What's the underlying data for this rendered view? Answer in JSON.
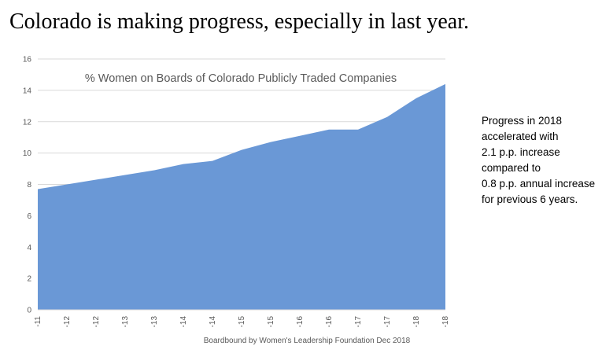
{
  "slide": {
    "title": "Colorado is making progress, especially in last year."
  },
  "callout": {
    "lines": [
      "Progress in 2018",
      "accelerated with",
      "2.1 p.p. increase",
      "compared to",
      "0.8 p.p. annual increase",
      "for previous 6 years."
    ]
  },
  "colors": {
    "area_fill": "#6a98d6",
    "grid": "#d9d9d9",
    "axis_text": "#595959"
  },
  "chart_data": {
    "type": "area",
    "title": "% Women on Boards of Colorado Publicly Traded Companies",
    "source": "Boardbound by Women's Leadership Foundation Dec 2018",
    "x_tick_labels": [
      "-11",
      "-12",
      "-12",
      "-13",
      "-13",
      "-14",
      "-14",
      "-15",
      "-15",
      "-16",
      "-16",
      "-17",
      "-17",
      "-18",
      "-18"
    ],
    "values": [
      7.7,
      8.0,
      8.3,
      8.6,
      8.9,
      9.3,
      9.5,
      10.2,
      10.7,
      11.1,
      11.5,
      11.5,
      12.3,
      13.5,
      14.4
    ],
    "ylim": [
      0,
      16
    ],
    "y_ticks": [
      0,
      2,
      4,
      6,
      8,
      10,
      12,
      14,
      16
    ],
    "grid": true,
    "legend": "none"
  }
}
